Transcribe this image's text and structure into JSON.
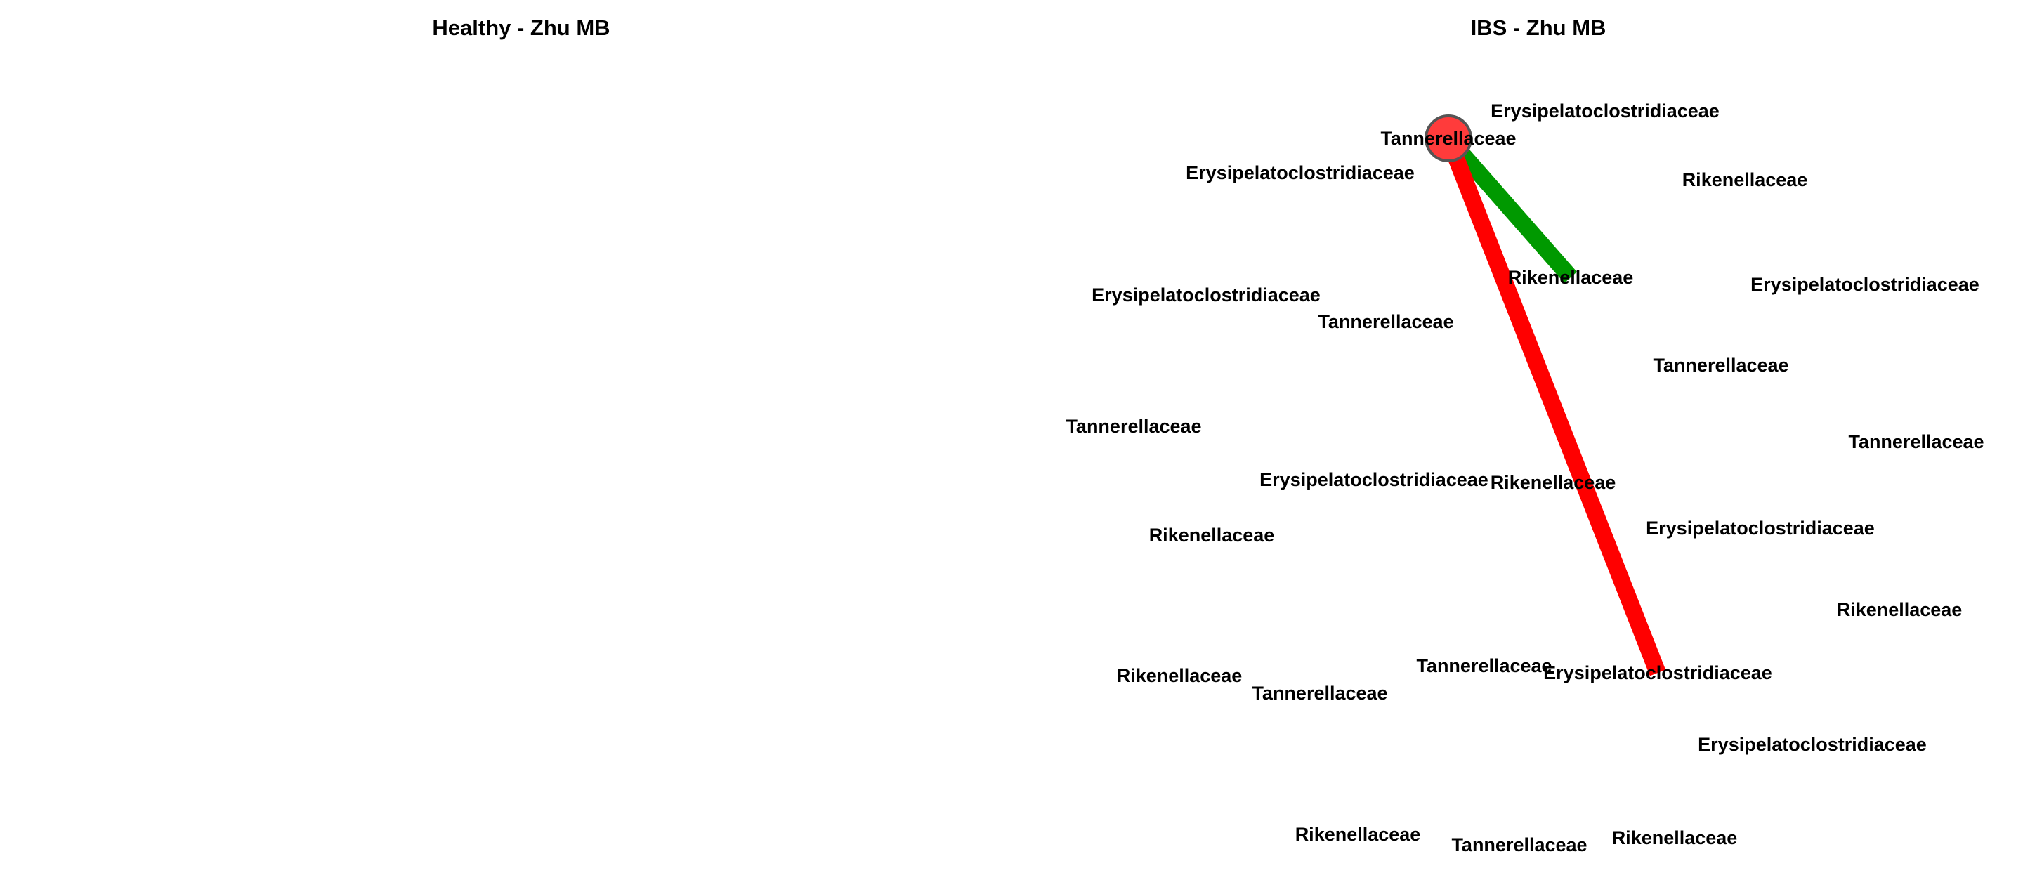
{
  "panels": [
    {
      "title": "Healthy - Zhu MB",
      "nodes": [],
      "edges": []
    },
    {
      "title": "IBS - Zhu MB",
      "nodes": [
        {
          "id": "n1",
          "label": "Tannerellaceae"
        },
        {
          "id": "n2",
          "label": "Erysipelatoclostridiaceae"
        },
        {
          "id": "n3",
          "label": "Erysipelatoclostridiaceae"
        },
        {
          "id": "n4",
          "label": "Rikenellaceae"
        },
        {
          "id": "n5",
          "label": "Rikenellaceae"
        },
        {
          "id": "n6",
          "label": "Erysipelatoclostridiaceae"
        },
        {
          "id": "n7",
          "label": "Erysipelatoclostridiaceae"
        },
        {
          "id": "n8",
          "label": "Tannerellaceae"
        },
        {
          "id": "n9",
          "label": "Tannerellaceae"
        },
        {
          "id": "n10",
          "label": "Tannerellaceae"
        },
        {
          "id": "n11",
          "label": "Tannerellaceae"
        },
        {
          "id": "n12",
          "label": "Erysipelatoclostridiaceae"
        },
        {
          "id": "n13",
          "label": "Rikenellaceae"
        },
        {
          "id": "n14",
          "label": "Rikenellaceae"
        },
        {
          "id": "n15",
          "label": "Erysipelatoclostridiaceae"
        },
        {
          "id": "n16",
          "label": "Rikenellaceae"
        },
        {
          "id": "n17",
          "label": "Rikenellaceae"
        },
        {
          "id": "n18",
          "label": "Tannerellaceae"
        },
        {
          "id": "n19",
          "label": "Erysipelatoclostridiaceae"
        },
        {
          "id": "n20",
          "label": "Tannerellaceae"
        },
        {
          "id": "n21",
          "label": "Erysipelatoclostridiaceae"
        },
        {
          "id": "n22",
          "label": "Rikenellaceae"
        },
        {
          "id": "n23",
          "label": "Tannerellaceae"
        },
        {
          "id": "n24",
          "label": "Rikenellaceae"
        }
      ],
      "edges": [
        {
          "from": "n1",
          "to": "n5",
          "color": "#009900"
        },
        {
          "from": "n1",
          "to": "n19",
          "color": "#ff0000"
        }
      ],
      "highlighted_node": {
        "id": "n1",
        "color": "#ff3b3b",
        "stroke": "#555555"
      }
    }
  ]
}
